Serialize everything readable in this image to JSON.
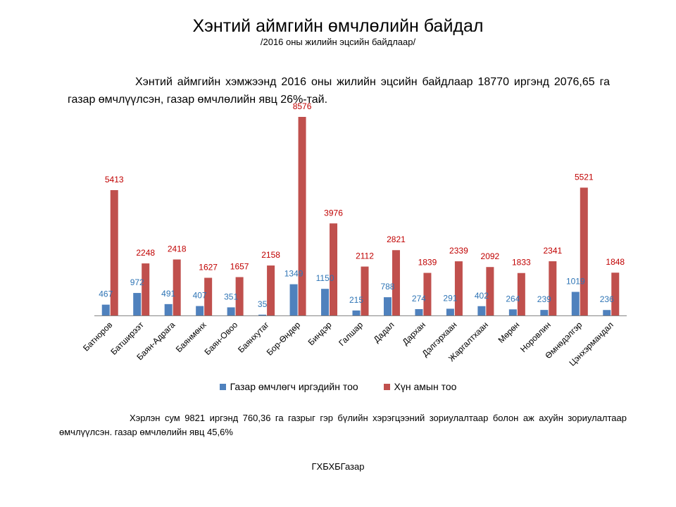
{
  "page": {
    "title": "Хэнтий аймгийн өмчлөлийн байдал",
    "subtitle": "/2016 оны жилийн  эцсийн  байдлаар/",
    "summary": "Хэнтий аймгийн хэмжээнд 2016 оны жилийн эцсийн байдлаар 18770 иргэнд 2076,65 га газар өмчлүүлсэн, газар өмчлөлийн явц 26%-тай.",
    "note": "Хэрлэн сум 9821 иргэнд  760,36 га газрыг гэр бүлийн  хэрэгцээний  зориулалтаар  болон аж ахуйн зориулалтаар  өмчлүүлсэн.  газар өмчлөлийн  явц 45,6%",
    "source": "ГХБХБГазар"
  },
  "chart_data": {
    "type": "bar",
    "title": "",
    "xlabel": "",
    "ylabel": "",
    "ylim": [
      0,
      9000
    ],
    "grid": false,
    "legend_position": "bottom",
    "categories": [
      "Батноров",
      "Батширээт",
      "Баян-Адрага",
      "Баянмөнх",
      "Баян-Овоо",
      "Баянхутаг",
      "Бор-Өндөр",
      "Биндэр",
      "Галшар",
      "Дадал",
      "Дархан",
      "Дэлгэрхаан",
      "Жаргалтхаан",
      "Мөрөн",
      "Норовлин",
      "Өмнөдэлгэр",
      "Цэнхэрмандал"
    ],
    "series": [
      {
        "name": "Газар өмчлөгч иргэдийн тоо",
        "color": "#4f81bd",
        "label_color": "#2e74b5",
        "values": [
          467,
          972,
          491,
          407,
          351,
          35,
          1349,
          1150,
          215,
          788,
          274,
          291,
          402,
          264,
          239,
          1019,
          236
        ]
      },
      {
        "name": "Хүн амын тоо",
        "color": "#c0504d",
        "label_color": "#c00000",
        "values": [
          5413,
          2248,
          2418,
          1627,
          1657,
          2158,
          8576,
          3976,
          2112,
          2821,
          1839,
          2339,
          2092,
          1833,
          2341,
          5521,
          1848
        ]
      }
    ]
  }
}
